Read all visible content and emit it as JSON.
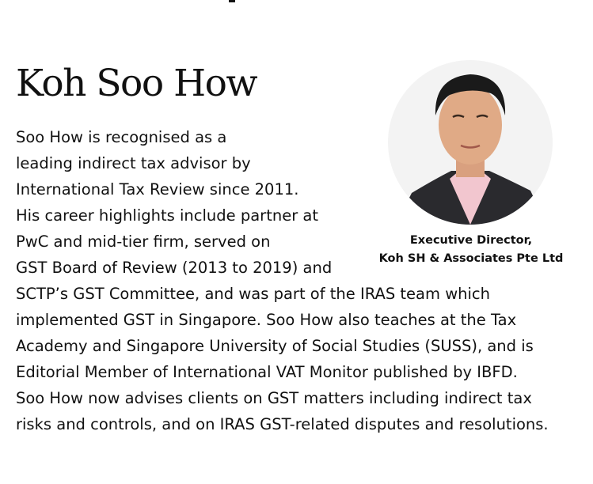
{
  "profile": {
    "name": "Koh Soo How",
    "bio_lines": [
      "Soo How is recognised as a",
      "leading indirect tax advisor by",
      "International Tax Review since 2011.",
      "His career highlights include partner at",
      "PwC and mid-tier firm, served on",
      "GST Board of Review (2013 to 2019) and",
      "SCTP’s GST Committee, and was part of the IRAS team which",
      "implemented GST in Singapore. Soo How also teaches at the Tax",
      "Academy and Singapore University of Social Studies (SUSS), and is",
      "Editorial Member of International VAT Monitor published by IBFD.",
      "Soo How now advises clients on GST matters including indirect tax",
      "risks and controls, and on IRAS GST-related disputes and resolutions."
    ],
    "caption": {
      "title": "Executive Director,",
      "company": "Koh SH & Associates Pte Ltd"
    }
  }
}
